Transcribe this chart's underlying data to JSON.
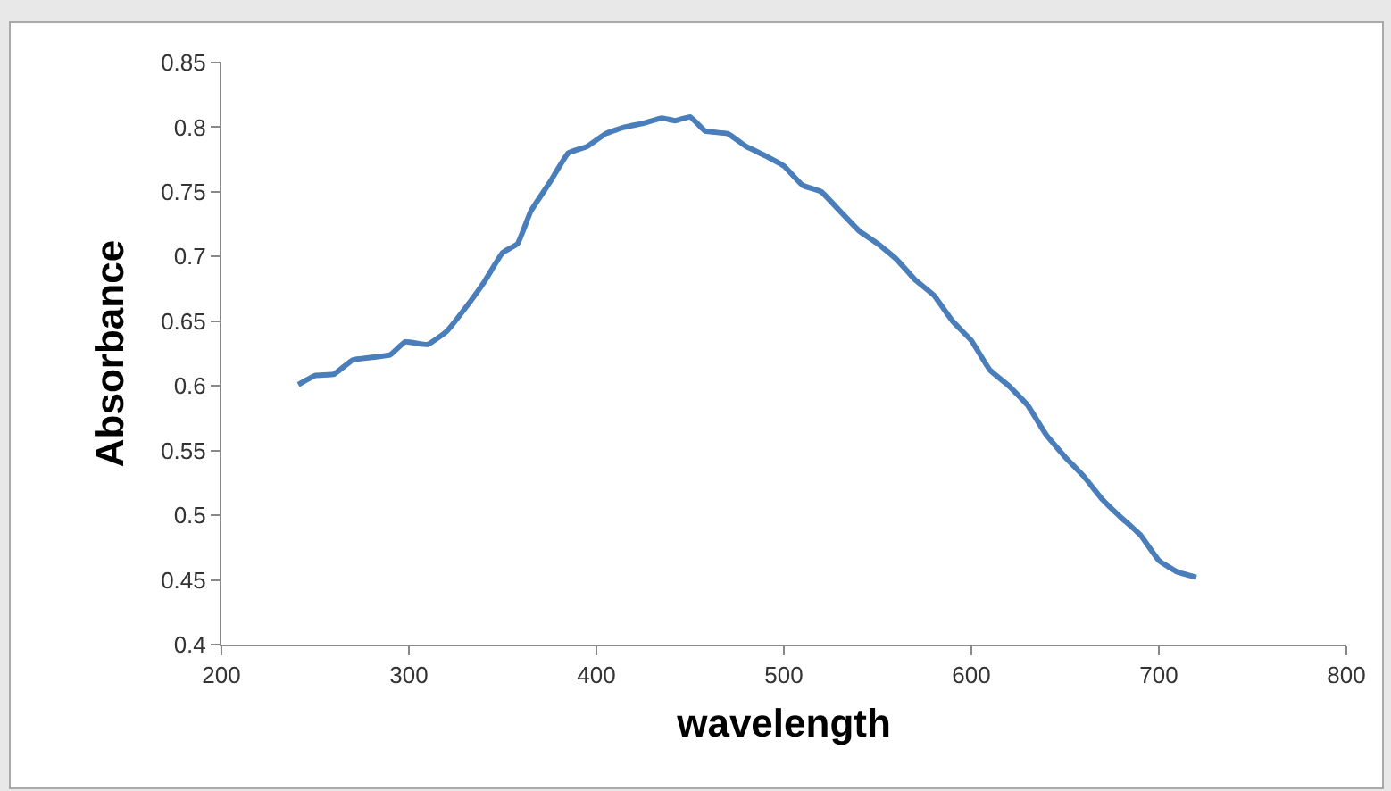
{
  "chart_data": {
    "type": "line",
    "xlabel": "wavelength",
    "ylabel": "Absorbance",
    "x": [
      241,
      250,
      260,
      270,
      280,
      290,
      298,
      310,
      320,
      330,
      340,
      350,
      358,
      365,
      375,
      385,
      395,
      405,
      415,
      425,
      435,
      442,
      450,
      458,
      470,
      480,
      490,
      500,
      510,
      520,
      530,
      540,
      550,
      560,
      570,
      580,
      590,
      600,
      610,
      620,
      630,
      640,
      650,
      660,
      670,
      680,
      690,
      700,
      710,
      720
    ],
    "series": [
      {
        "color": "#4a7ebb",
        "values": [
          0.601,
          0.608,
          0.609,
          0.62,
          0.622,
          0.624,
          0.634,
          0.632,
          0.642,
          0.66,
          0.68,
          0.703,
          0.71,
          0.735,
          0.757,
          0.78,
          0.785,
          0.795,
          0.8,
          0.803,
          0.807,
          0.805,
          0.808,
          0.797,
          0.795,
          0.785,
          0.778,
          0.77,
          0.755,
          0.75,
          0.735,
          0.72,
          0.71,
          0.698,
          0.682,
          0.67,
          0.65,
          0.635,
          0.612,
          0.6,
          0.585,
          0.562,
          0.545,
          0.53,
          0.512,
          0.498,
          0.485,
          0.465,
          0.456,
          0.452
        ]
      }
    ],
    "xlim": [
      200,
      800
    ],
    "xticks": [
      200,
      300,
      400,
      500,
      600,
      700,
      800
    ],
    "ylim": [
      0.4,
      0.85
    ],
    "yticks": [
      0.4,
      0.45,
      0.5,
      0.55,
      0.6,
      0.65,
      0.7,
      0.75,
      0.8,
      0.85
    ],
    "grid": false,
    "marker": "none",
    "line_style": "solid"
  }
}
